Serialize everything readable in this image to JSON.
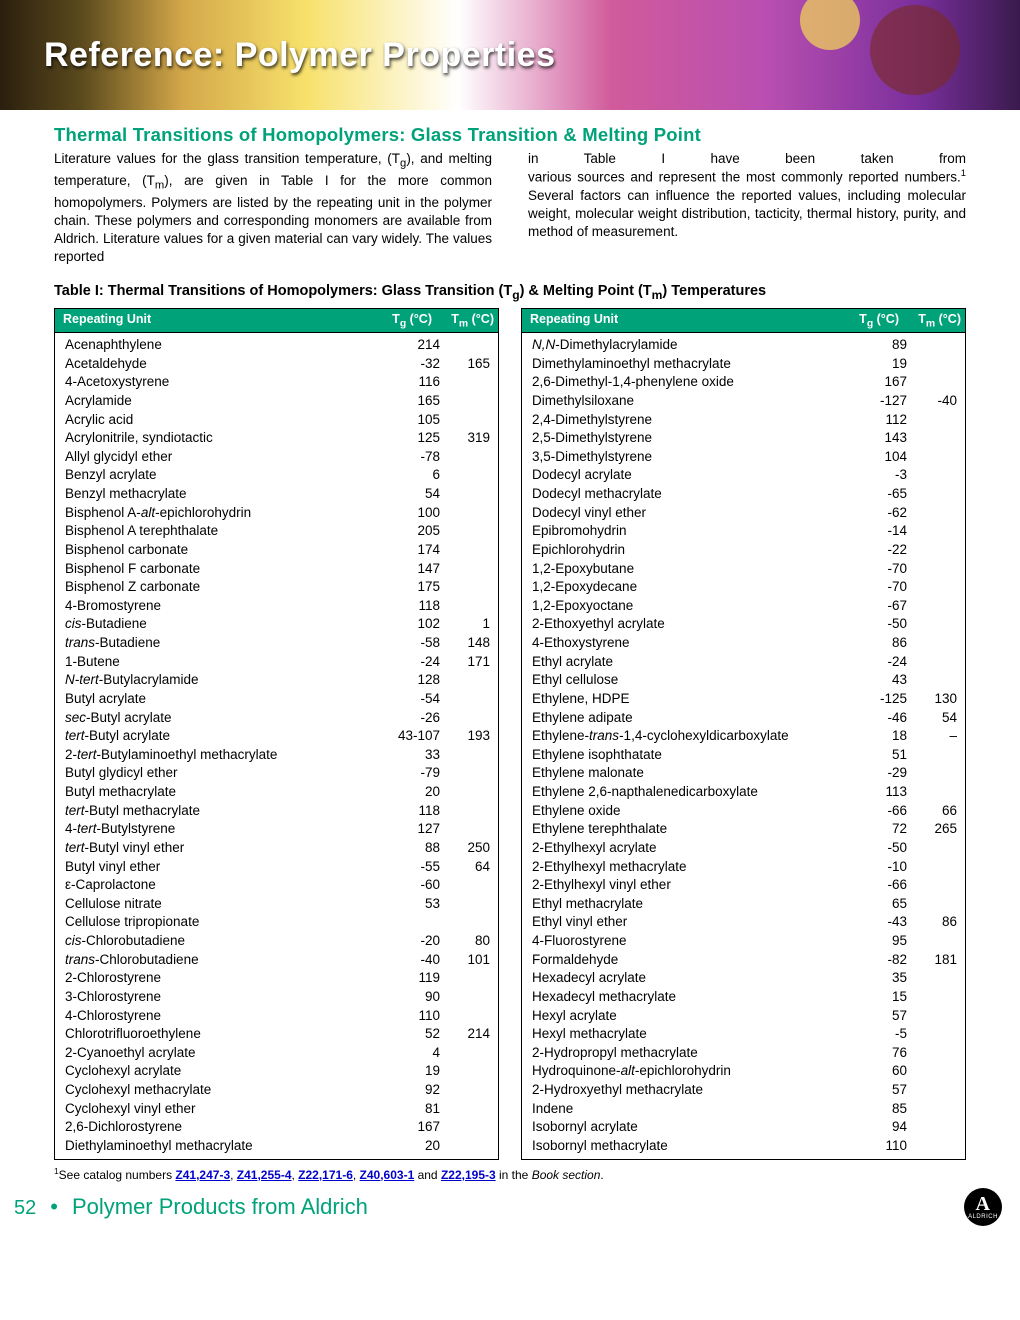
{
  "banner": {
    "title": "Reference:  Polymer Properties"
  },
  "section_title": "Thermal Transitions of Homopolymers: Glass Transition & Melting Point",
  "intro": {
    "left": "Literature values for the glass transition temperature, (T_g_), and melting temperature, (T_m_), are given in Table I for the more common homopolymers. Polymers are listed by the repeat­ing unit in the polymer chain. These polymers and corre­sponding monomers are available from Aldrich. Literature val­ues for a given material can vary widely. The values reported",
    "right_line1": "in      Table      I      have      been      taken      from",
    "right_rest": "various sources and represent the most commonly reported numbers._1_  Several factors can influence the reported values, including molecular weight, molecular weight distribution, tacticity, thermal history, purity, and method of measurement."
  },
  "table_caption": "Table I: Thermal Transitions of Homopolymers: Glass Transition (T_g_) & Melting Point (T_m_) Temperatures",
  "headers": {
    "unit": "Repeating Unit",
    "tg": "T_g_ (°C)",
    "tm": "T_m_ (°C)"
  },
  "left_rows": [
    {
      "name": "Acenaphthylene",
      "tg": "214",
      "tm": ""
    },
    {
      "name": "Acetaldehyde",
      "tg": "-32",
      "tm": "165"
    },
    {
      "name": "4-Acetoxystyrene",
      "tg": "116",
      "tm": ""
    },
    {
      "name": "Acrylamide",
      "tg": "165",
      "tm": ""
    },
    {
      "name": "Acrylic acid",
      "tg": "105",
      "tm": ""
    },
    {
      "name": "Acrylonitrile, syndiotactic",
      "tg": "125",
      "tm": "319"
    },
    {
      "name": "Allyl glycidyl ether",
      "tg": "-78",
      "tm": ""
    },
    {
      "name": "Benzyl acrylate",
      "tg": "6",
      "tm": ""
    },
    {
      "name": "Benzyl methacrylate",
      "tg": "54",
      "tm": ""
    },
    {
      "name": "Bisphenol A-<i>alt</i>-epichlorohydrin",
      "tg": "100",
      "tm": ""
    },
    {
      "name": "Bisphenol A terephthalate",
      "tg": "205",
      "tm": ""
    },
    {
      "name": "Bisphenol carbonate",
      "tg": "174",
      "tm": ""
    },
    {
      "name": "Bisphenol F carbonate",
      "tg": "147",
      "tm": ""
    },
    {
      "name": "Bisphenol Z carbonate",
      "tg": "175",
      "tm": ""
    },
    {
      "name": "4-Bromostyrene",
      "tg": "118",
      "tm": ""
    },
    {
      "name": "<i>cis</i>-Butadiene",
      "tg": "102",
      "tm": "1"
    },
    {
      "name": "<i>trans</i>-Butadiene",
      "tg": "-58",
      "tm": "148"
    },
    {
      "name": "1-Butene",
      "tg": "-24",
      "tm": "171"
    },
    {
      "name": "<i>N-tert</i>-Butylacrylamide",
      "tg": "128",
      "tm": ""
    },
    {
      "name": "Butyl acrylate",
      "tg": "-54",
      "tm": ""
    },
    {
      "name": "<i>sec</i>-Butyl acrylate",
      "tg": "-26",
      "tm": ""
    },
    {
      "name": "<i>tert</i>-Butyl acrylate",
      "tg": "43-107",
      "tm": "193"
    },
    {
      "name": "2-<i>tert</i>-Butylaminoethyl methacrylate",
      "tg": "33",
      "tm": ""
    },
    {
      "name": "Butyl glydicyl ether",
      "tg": "-79",
      "tm": ""
    },
    {
      "name": "Butyl methacrylate",
      "tg": "20",
      "tm": ""
    },
    {
      "name": "<i>tert</i>-Butyl methacrylate",
      "tg": "118",
      "tm": ""
    },
    {
      "name": "4-<i>tert</i>-Butylstyrene",
      "tg": "127",
      "tm": ""
    },
    {
      "name": "<i>tert</i>-Butyl vinyl ether",
      "tg": "88",
      "tm": "250"
    },
    {
      "name": "Butyl vinyl ether",
      "tg": "-55",
      "tm": "64"
    },
    {
      "name": "ε-Caprolactone",
      "tg": "-60",
      "tm": ""
    },
    {
      "name": "Cellulose nitrate",
      "tg": "53",
      "tm": ""
    },
    {
      "name": "Cellulose tripropionate",
      "tg": "",
      "tm": ""
    },
    {
      "name": "<i>cis</i>-Chlorobutadiene",
      "tg": "-20",
      "tm": "80"
    },
    {
      "name": "<i>trans</i>-Chlorobutadiene",
      "tg": "-40",
      "tm": "101"
    },
    {
      "name": "2-Chlorostyrene",
      "tg": "119",
      "tm": ""
    },
    {
      "name": "3-Chlorostyrene",
      "tg": "90",
      "tm": ""
    },
    {
      "name": "4-Chlorostyrene",
      "tg": "110",
      "tm": ""
    },
    {
      "name": "Chlorotrifluoroethylene",
      "tg": "52",
      "tm": "214"
    },
    {
      "name": "2-Cyanoethyl acrylate",
      "tg": "4",
      "tm": ""
    },
    {
      "name": "Cyclohexyl acrylate",
      "tg": "19",
      "tm": ""
    },
    {
      "name": "Cyclohexyl methacrylate",
      "tg": "92",
      "tm": ""
    },
    {
      "name": "Cyclohexyl vinyl ether",
      "tg": "81",
      "tm": ""
    },
    {
      "name": "2,6-Dichlorostyrene",
      "tg": "167",
      "tm": ""
    },
    {
      "name": "Diethylaminoethyl methacrylate",
      "tg": "20",
      "tm": ""
    }
  ],
  "right_rows": [
    {
      "name": "<i>N,N</i>-Dimethylacrylamide",
      "tg": "89",
      "tm": ""
    },
    {
      "name": "Dimethylaminoethyl methacrylate",
      "tg": "19",
      "tm": ""
    },
    {
      "name": "2,6-Dimethyl-1,4-phenylene oxide",
      "tg": "167",
      "tm": ""
    },
    {
      "name": "Dimethylsiloxane",
      "tg": "-127",
      "tm": "-40"
    },
    {
      "name": "2,4-Dimethylstyrene",
      "tg": "112",
      "tm": ""
    },
    {
      "name": "2,5-Dimethylstyrene",
      "tg": "143",
      "tm": ""
    },
    {
      "name": "3,5-Dimethylstyrene",
      "tg": "104",
      "tm": ""
    },
    {
      "name": "Dodecyl acrylate",
      "tg": "-3",
      "tm": ""
    },
    {
      "name": "Dodecyl methacrylate",
      "tg": "-65",
      "tm": ""
    },
    {
      "name": "Dodecyl vinyl ether",
      "tg": "-62",
      "tm": ""
    },
    {
      "name": "Epibromohydrin",
      "tg": "-14",
      "tm": ""
    },
    {
      "name": "Epichlorohydrin",
      "tg": "-22",
      "tm": ""
    },
    {
      "name": "1,2-Epoxybutane",
      "tg": "-70",
      "tm": ""
    },
    {
      "name": "1,2-Epoxydecane",
      "tg": "-70",
      "tm": ""
    },
    {
      "name": "1,2-Epoxyoctane",
      "tg": "-67",
      "tm": ""
    },
    {
      "name": "2-Ethoxyethyl acrylate",
      "tg": "-50",
      "tm": ""
    },
    {
      "name": "4-Ethoxystyrene",
      "tg": "86",
      "tm": ""
    },
    {
      "name": "Ethyl acrylate",
      "tg": "-24",
      "tm": ""
    },
    {
      "name": "Ethyl cellulose",
      "tg": "43",
      "tm": ""
    },
    {
      "name": "Ethylene, HDPE",
      "tg": "-125",
      "tm": "130"
    },
    {
      "name": "Ethylene adipate",
      "tg": "-46",
      "tm": "54"
    },
    {
      "name": "Ethylene-<i>trans</i>-1,4-cyclohexyldicarboxylate",
      "tg": "18",
      "tm": "–"
    },
    {
      "name": "Ethylene isophthatate",
      "tg": "51",
      "tm": ""
    },
    {
      "name": "Ethylene malonate",
      "tg": "-29",
      "tm": ""
    },
    {
      "name": "Ethylene 2,6-napthalenedicarboxylate",
      "tg": "113",
      "tm": ""
    },
    {
      "name": "Ethylene oxide",
      "tg": "-66",
      "tm": "66"
    },
    {
      "name": "Ethylene terephthalate",
      "tg": "72",
      "tm": "265"
    },
    {
      "name": "2-Ethylhexyl acrylate",
      "tg": "-50",
      "tm": ""
    },
    {
      "name": "2-Ethylhexyl methacrylate",
      "tg": "-10",
      "tm": ""
    },
    {
      "name": "2-Ethylhexyl vinyl ether",
      "tg": "-66",
      "tm": ""
    },
    {
      "name": "Ethyl methacrylate",
      "tg": "65",
      "tm": ""
    },
    {
      "name": "Ethyl vinyl ether",
      "tg": "-43",
      "tm": "86"
    },
    {
      "name": "4-Fluorostyrene",
      "tg": "95",
      "tm": ""
    },
    {
      "name": "Formaldehyde",
      "tg": "-82",
      "tm": "181"
    },
    {
      "name": "Hexadecyl acrylate",
      "tg": "35",
      "tm": ""
    },
    {
      "name": "Hexadecyl methacrylate",
      "tg": "15",
      "tm": ""
    },
    {
      "name": "Hexyl acrylate",
      "tg": "57",
      "tm": ""
    },
    {
      "name": "Hexyl methacrylate",
      "tg": "-5",
      "tm": ""
    },
    {
      "name": "2-Hydropropyl methacrylate",
      "tg": "76",
      "tm": ""
    },
    {
      "name": "Hydroquinone-<i>alt</i>-epichlorohydrin",
      "tg": "60",
      "tm": ""
    },
    {
      "name": "2-Hydroxyethyl methacrylate",
      "tg": "57",
      "tm": ""
    },
    {
      "name": "Indene",
      "tg": "85",
      "tm": ""
    },
    {
      "name": "Isobornyl acrylate",
      "tg": "94",
      "tm": ""
    },
    {
      "name": "Isobornyl methacrylate",
      "tg": "110",
      "tm": ""
    }
  ],
  "footnote": {
    "prefix": "See catalog numbers ",
    "links": [
      "Z41,247-3",
      "Z41,255-4",
      "Z22,171-6",
      "Z40,603-1",
      "Z22,195-3"
    ],
    "suffix_in": " in the ",
    "suffix_book": "Book section",
    "sup": "1"
  },
  "footer": {
    "page": "52",
    "text": "Polymer Products from Aldrich",
    "logo_sub": "ALDRICH"
  }
}
